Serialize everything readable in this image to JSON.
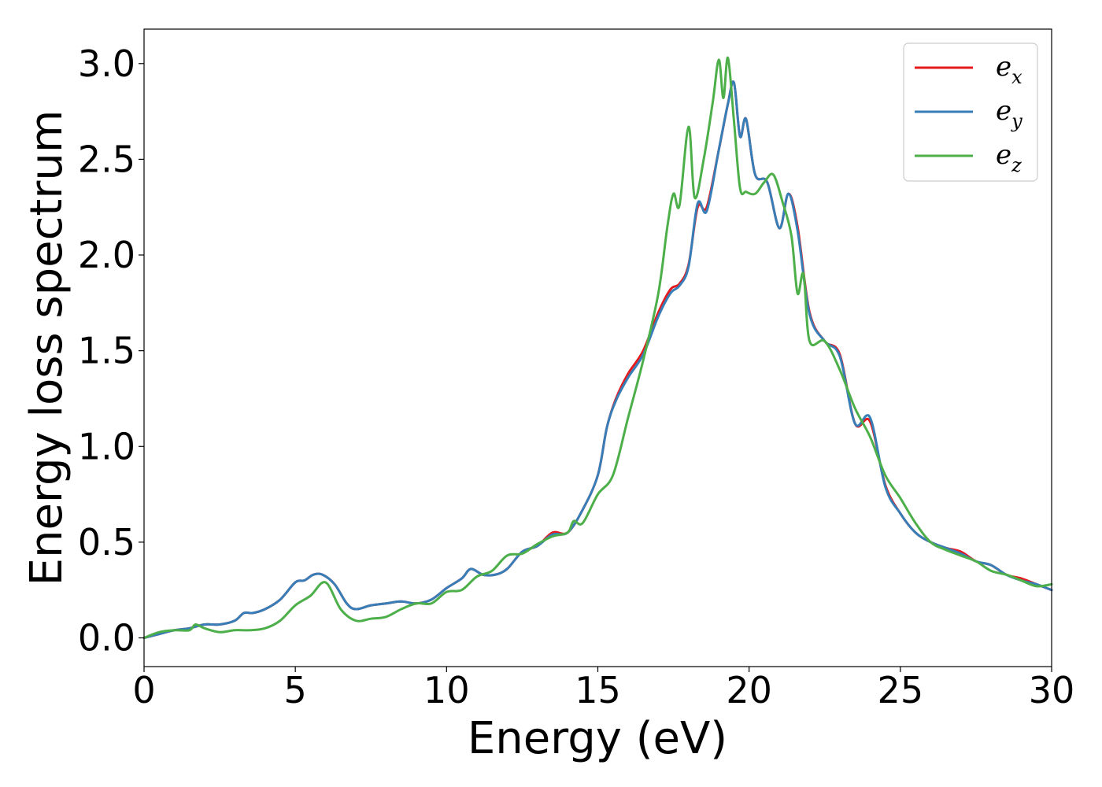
{
  "chart_data": {
    "type": "line",
    "xlabel": "Energy (eV)",
    "ylabel": "Energy loss spectrum",
    "xlim": [
      0,
      30
    ],
    "ylim": [
      -0.15,
      3.18
    ],
    "xticks": [
      0,
      5,
      10,
      15,
      20,
      25,
      30
    ],
    "xtick_labels": [
      "0",
      "5",
      "10",
      "15",
      "20",
      "25",
      "30"
    ],
    "yticks": [
      0.0,
      0.5,
      1.0,
      1.5,
      2.0,
      2.5,
      3.0
    ],
    "ytick_labels": [
      "0.0",
      "0.5",
      "1.0",
      "1.5",
      "2.0",
      "2.5",
      "3.0"
    ],
    "grid": false,
    "legend_position": "top-right",
    "series": [
      {
        "name": "e_x",
        "legend_base": "e",
        "legend_sub": "x",
        "color": "#e41a1c",
        "x": [
          0,
          0.5,
          1,
          1.5,
          2,
          2.5,
          3,
          3.3,
          3.6,
          4,
          4.5,
          5,
          5.3,
          5.6,
          5.9,
          6.3,
          6.7,
          7,
          7.5,
          8,
          8.5,
          9,
          9.5,
          10,
          10.5,
          10.8,
          11.2,
          11.6,
          12,
          12.5,
          13,
          13.5,
          14,
          14.5,
          15,
          15.3,
          15.6,
          16,
          16.5,
          17,
          17.4,
          17.7,
          18,
          18.3,
          18.6,
          19,
          19.3,
          19.5,
          19.7,
          19.9,
          20.2,
          20.6,
          21,
          21.3,
          21.6,
          22,
          22.5,
          23,
          23.5,
          24,
          24.5,
          25,
          25.5,
          26,
          26.5,
          27,
          27.5,
          28,
          28.5,
          29,
          29.5,
          30
        ],
        "y": [
          0.0,
          0.02,
          0.04,
          0.05,
          0.07,
          0.07,
          0.09,
          0.13,
          0.13,
          0.15,
          0.2,
          0.29,
          0.3,
          0.33,
          0.33,
          0.28,
          0.18,
          0.15,
          0.17,
          0.18,
          0.19,
          0.18,
          0.2,
          0.26,
          0.31,
          0.36,
          0.33,
          0.33,
          0.36,
          0.45,
          0.48,
          0.55,
          0.55,
          0.67,
          0.85,
          1.1,
          1.25,
          1.38,
          1.5,
          1.7,
          1.82,
          1.85,
          1.95,
          2.25,
          2.25,
          2.55,
          2.79,
          2.9,
          2.62,
          2.71,
          2.42,
          2.38,
          2.14,
          2.32,
          2.15,
          1.7,
          1.55,
          1.48,
          1.12,
          1.13,
          0.8,
          0.65,
          0.55,
          0.5,
          0.47,
          0.45,
          0.4,
          0.38,
          0.33,
          0.31,
          0.28,
          0.25
        ]
      },
      {
        "name": "e_y",
        "legend_base": "e",
        "legend_sub": "y",
        "color": "#377eb8",
        "x": [
          0,
          0.5,
          1,
          1.5,
          2,
          2.5,
          3,
          3.3,
          3.6,
          4,
          4.5,
          5,
          5.3,
          5.6,
          5.9,
          6.3,
          6.7,
          7,
          7.5,
          8,
          8.5,
          9,
          9.5,
          10,
          10.5,
          10.8,
          11.2,
          11.6,
          12,
          12.5,
          13,
          13.5,
          14,
          14.5,
          15,
          15.3,
          15.6,
          16,
          16.5,
          17,
          17.4,
          17.7,
          18,
          18.3,
          18.6,
          19,
          19.3,
          19.5,
          19.7,
          19.9,
          20.2,
          20.6,
          21,
          21.3,
          21.6,
          22,
          22.5,
          23,
          23.5,
          24,
          24.5,
          25,
          25.5,
          26,
          26.5,
          27,
          27.5,
          28,
          28.5,
          29,
          29.5,
          30
        ],
        "y": [
          0.0,
          0.02,
          0.04,
          0.05,
          0.07,
          0.07,
          0.09,
          0.13,
          0.13,
          0.15,
          0.2,
          0.29,
          0.3,
          0.33,
          0.33,
          0.28,
          0.18,
          0.15,
          0.17,
          0.18,
          0.19,
          0.18,
          0.2,
          0.26,
          0.31,
          0.36,
          0.33,
          0.33,
          0.36,
          0.45,
          0.48,
          0.54,
          0.55,
          0.67,
          0.85,
          1.1,
          1.24,
          1.36,
          1.48,
          1.68,
          1.8,
          1.84,
          1.94,
          2.27,
          2.23,
          2.55,
          2.79,
          2.9,
          2.62,
          2.71,
          2.42,
          2.38,
          2.14,
          2.32,
          2.13,
          1.69,
          1.55,
          1.47,
          1.12,
          1.15,
          0.79,
          0.65,
          0.55,
          0.5,
          0.47,
          0.44,
          0.4,
          0.38,
          0.33,
          0.3,
          0.28,
          0.25
        ]
      },
      {
        "name": "e_z",
        "legend_base": "e",
        "legend_sub": "z",
        "color": "#4daf4a",
        "x": [
          0,
          0.5,
          1,
          1.5,
          1.7,
          2,
          2.5,
          3,
          3.5,
          4,
          4.5,
          5,
          5.5,
          6,
          6.5,
          7,
          7.5,
          8,
          8.5,
          9,
          9.5,
          10,
          10.5,
          11,
          11.5,
          12,
          12.5,
          13,
          13.5,
          14,
          14.2,
          14.5,
          15,
          15.5,
          16,
          16.5,
          17,
          17.3,
          17.5,
          17.7,
          18,
          18.2,
          18.5,
          18.8,
          19,
          19.15,
          19.3,
          19.5,
          19.7,
          19.9,
          20.2,
          20.5,
          20.8,
          21.1,
          21.4,
          21.6,
          21.8,
          22,
          22.5,
          23,
          23.5,
          24,
          24.5,
          25,
          25.5,
          26,
          26.5,
          27,
          27.5,
          28,
          28.5,
          29,
          29.5,
          30
        ],
        "y": [
          0.0,
          0.03,
          0.04,
          0.04,
          0.07,
          0.05,
          0.03,
          0.04,
          0.04,
          0.05,
          0.09,
          0.17,
          0.22,
          0.29,
          0.15,
          0.09,
          0.1,
          0.11,
          0.15,
          0.18,
          0.18,
          0.24,
          0.25,
          0.32,
          0.35,
          0.43,
          0.44,
          0.49,
          0.53,
          0.55,
          0.61,
          0.6,
          0.75,
          0.85,
          1.15,
          1.45,
          1.8,
          2.15,
          2.32,
          2.26,
          2.67,
          2.3,
          2.5,
          2.8,
          3.02,
          2.82,
          3.03,
          2.7,
          2.35,
          2.33,
          2.32,
          2.38,
          2.42,
          2.28,
          2.1,
          1.8,
          1.9,
          1.55,
          1.55,
          1.4,
          1.2,
          1.05,
          0.85,
          0.73,
          0.6,
          0.5,
          0.46,
          0.43,
          0.4,
          0.35,
          0.33,
          0.3,
          0.27,
          0.28
        ]
      }
    ]
  }
}
